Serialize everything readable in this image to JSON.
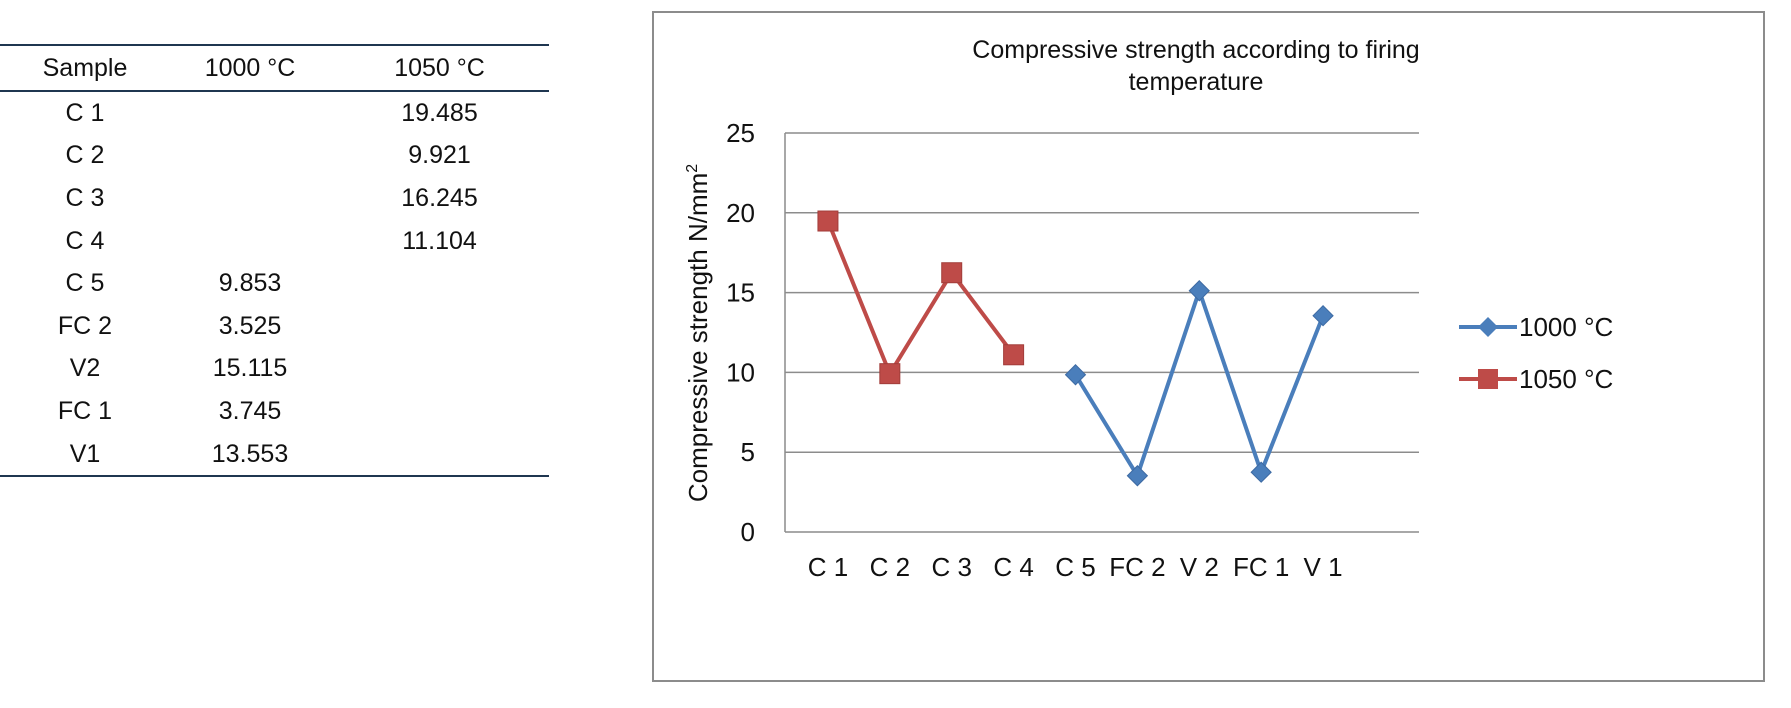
{
  "table": {
    "headers": [
      "Sample",
      "1000 °C",
      "1050 °C"
    ],
    "rows": [
      [
        "C 1",
        "",
        "19.485"
      ],
      [
        "C 2",
        "",
        "9.921"
      ],
      [
        "C 3",
        "",
        "16.245"
      ],
      [
        "C 4",
        "",
        "11.104"
      ],
      [
        "C 5",
        "9.853",
        ""
      ],
      [
        "FC 2",
        "3.525",
        ""
      ],
      [
        "V2",
        "15.115",
        ""
      ],
      [
        "FC 1",
        "3.745",
        ""
      ],
      [
        "V1",
        "13.553",
        ""
      ]
    ]
  },
  "chart_data": {
    "type": "line",
    "title_lines": [
      "Compressive strength according to firing",
      "temperature"
    ],
    "xlabel": "",
    "ylabel": "Compressive strength N/mm",
    "ylabel_superscript": "2",
    "categories": [
      "C 1",
      "C 2",
      "C 3",
      "C 4",
      "C 5",
      "FC 2",
      "V 2",
      "FC 1",
      "V 1"
    ],
    "ylim": [
      0,
      25
    ],
    "yticks": [
      "0",
      "5",
      "10",
      "15",
      "20",
      "25"
    ],
    "grid": true,
    "legend_position": "right",
    "series": [
      {
        "name": "1000 °C",
        "color": "#4a7ebb",
        "marker": "diamond",
        "values": [
          null,
          null,
          null,
          null,
          9.853,
          3.525,
          15.115,
          3.745,
          13.553
        ]
      },
      {
        "name": "1050 °C",
        "color": "#be4b48",
        "marker": "square",
        "values": [
          19.485,
          9.921,
          16.245,
          11.104,
          null,
          null,
          null,
          null,
          null
        ]
      }
    ]
  }
}
